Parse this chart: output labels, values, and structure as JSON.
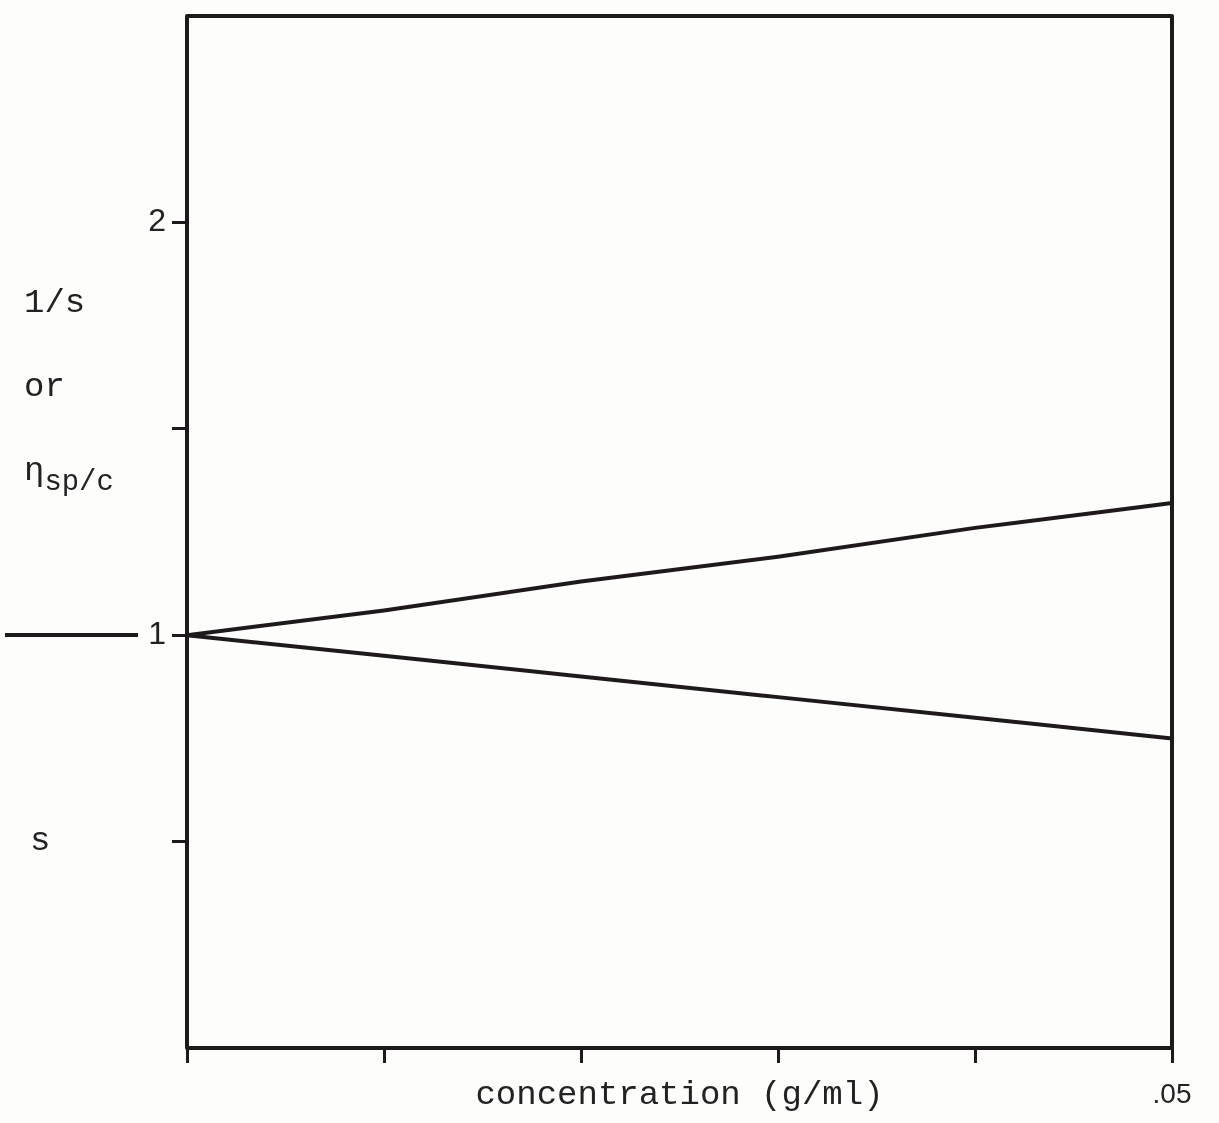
{
  "chart_data": {
    "type": "line",
    "xlabel": "concentration (g/ml)",
    "ylabel": "1/s or η$_{sp/c}$",
    "annotations": [
      "s"
    ],
    "categories": [
      null,
      null,
      null,
      null,
      null,
      ".05"
    ],
    "series": [
      {
        "color": "#1e1a1c",
        "values": [
          1,
          1.06,
          1.13,
          1.19,
          1.26,
          1.32
        ]
      },
      {
        "color": "#1e1a1c",
        "values": [
          1,
          0.95,
          0.9,
          0.85,
          0.8,
          0.75
        ]
      }
    ],
    "ylim": [
      0,
      2.5
    ],
    "yticks": [
      {
        "value": 0.5,
        "label": null
      },
      {
        "value": 1,
        "label": "1"
      },
      {
        "value": 1.5,
        "label": null
      },
      {
        "value": 2,
        "label": "2"
      }
    ],
    "grid": false,
    "legend": false,
    "marker": "none",
    "line_style": "solid"
  }
}
